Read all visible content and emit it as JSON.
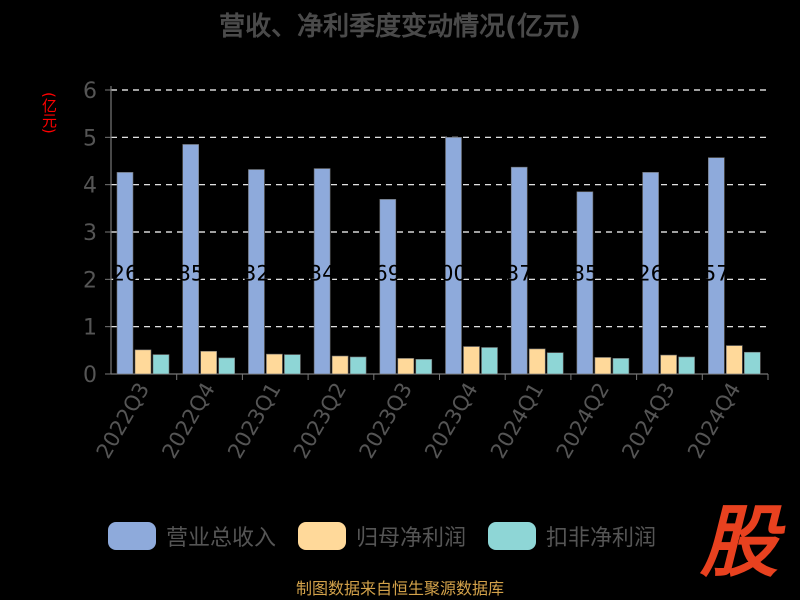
{
  "chart_data": {
    "type": "bar",
    "title": "营收、净利季度变动情况(亿元)",
    "ylabel": "(亿元)",
    "ylim": [
      0,
      6
    ],
    "yticks": [
      0,
      1,
      2,
      3,
      4,
      5,
      6
    ],
    "categories": [
      "2022Q3",
      "2022Q4",
      "2023Q1",
      "2023Q2",
      "2023Q3",
      "2023Q4",
      "2024Q1",
      "2024Q2",
      "2024Q3",
      "2024Q4"
    ],
    "series": [
      {
        "name": "营业总收入",
        "color": "#8eaadb",
        "values": [
          4.26,
          4.85,
          4.32,
          4.34,
          3.69,
          5.0,
          4.37,
          3.85,
          4.26,
          4.57
        ]
      },
      {
        "name": "归母净利润",
        "color": "#ffd99a",
        "values": [
          0.51,
          0.48,
          0.42,
          0.38,
          0.33,
          0.58,
          0.53,
          0.35,
          0.4,
          0.6
        ]
      },
      {
        "name": "扣非净利润",
        "color": "#8ed6d6",
        "values": [
          0.41,
          0.34,
          0.41,
          0.36,
          0.31,
          0.56,
          0.45,
          0.33,
          0.36,
          0.46
        ]
      }
    ],
    "data_labels": [
      "26",
      "85",
      "32",
      "34",
      "69",
      "00",
      "37",
      "85",
      "26",
      "57"
    ],
    "grid": true,
    "legend": "bottom"
  },
  "source": "制图数据来自恒生聚源数据库",
  "logo_text": "股"
}
